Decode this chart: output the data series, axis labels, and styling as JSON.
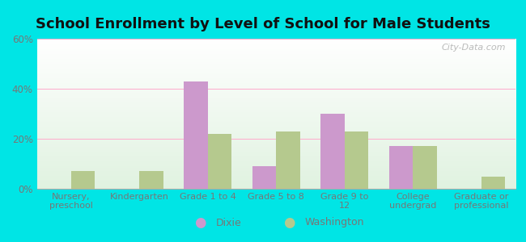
{
  "title": "School Enrollment by Level of School for Male Students",
  "categories": [
    "Nursery,\npreschool",
    "Kindergarten",
    "Grade 1 to 4",
    "Grade 5 to 8",
    "Grade 9 to\n12",
    "College\nundergrad",
    "Graduate or\nprofessional"
  ],
  "dixie": [
    0,
    0,
    43,
    9,
    30,
    17,
    0
  ],
  "washington": [
    7,
    7,
    22,
    23,
    23,
    17,
    5
  ],
  "dixie_color": "#cc99cc",
  "washington_color": "#b5c98e",
  "background_color": "#00e5e5",
  "ylim": [
    0,
    60
  ],
  "yticks": [
    0,
    20,
    40,
    60
  ],
  "ytick_labels": [
    "0%",
    "20%",
    "40%",
    "60%"
  ],
  "legend_labels": [
    "Dixie",
    "Washington"
  ],
  "title_fontsize": 13,
  "watermark": "City-Data.com",
  "grid_color": "#ffaacc",
  "tick_color": "#777777"
}
